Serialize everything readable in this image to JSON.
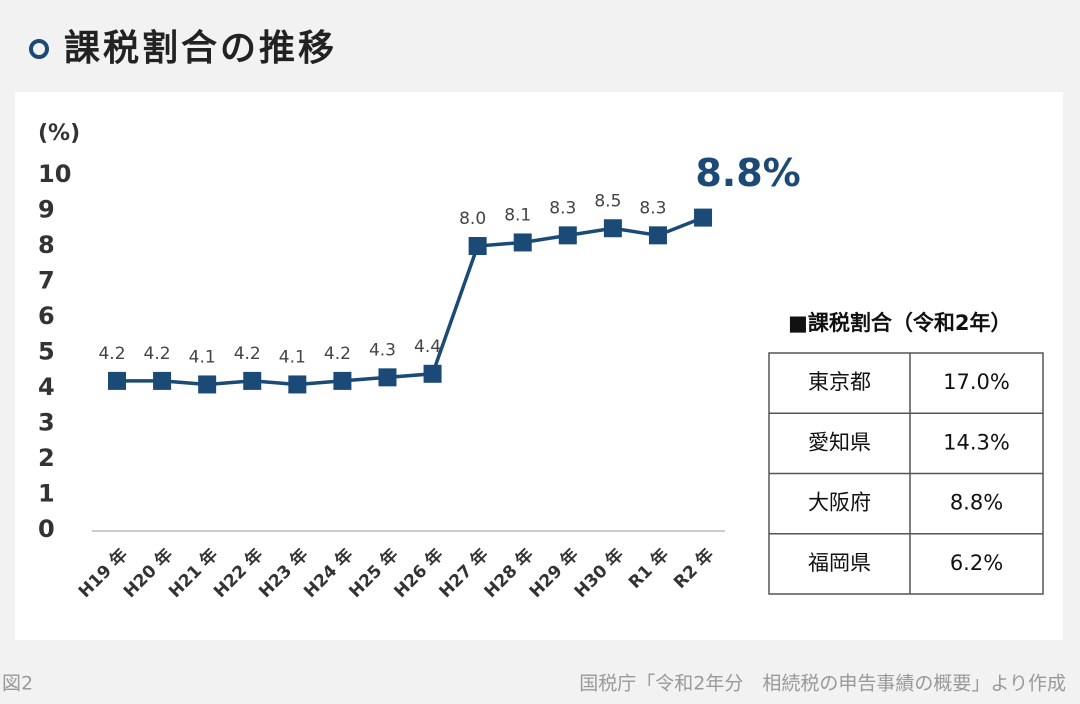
{
  "header": {
    "title": "課税割合の推移"
  },
  "chart_data": {
    "type": "line",
    "y_label": "(%)",
    "categories": [
      "H19 年",
      "H20 年",
      "H21 年",
      "H22 年",
      "H23 年",
      "H24 年",
      "H25 年",
      "H26 年",
      "H27 年",
      "H28 年",
      "H29 年",
      "H30 年",
      "R1 年",
      "R2 年"
    ],
    "values": [
      4.2,
      4.2,
      4.1,
      4.2,
      4.1,
      4.2,
      4.3,
      4.4,
      8.0,
      8.1,
      8.3,
      8.5,
      8.3,
      8.8
    ],
    "value_labels": [
      "4.2",
      "4.2",
      "4.1",
      "4.2",
      "4.1",
      "4.2",
      "4.3",
      "4.4",
      "8.0",
      "8.1",
      "8.3",
      "8.5",
      "8.3",
      "8.8%"
    ],
    "color": "#1b4a77",
    "ylim": [
      0,
      10
    ],
    "yticks": [
      0,
      1,
      2,
      3,
      4,
      5,
      6,
      7,
      8,
      9,
      10
    ],
    "grid": false
  },
  "table": {
    "title": "■課税割合（令和2年）",
    "rows": [
      [
        "東京都",
        "17.0%"
      ],
      [
        "愛知県",
        "14.3%"
      ],
      [
        "大阪府",
        "8.8%"
      ],
      [
        "福岡県",
        "6.2%"
      ]
    ]
  },
  "footer": {
    "figure": "図2",
    "source": "国税庁「令和2年分　相続税の申告事績の概要」より作成"
  }
}
